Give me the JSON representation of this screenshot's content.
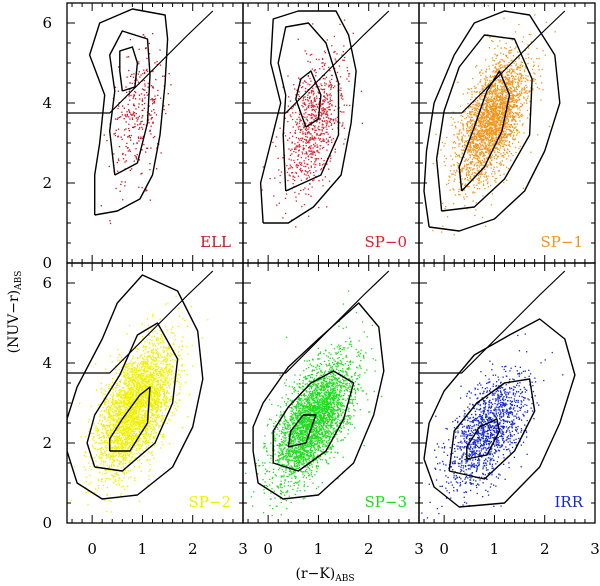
{
  "figure": {
    "ylabel_main": "(NUV−r)",
    "ylabel_sub": "ABS",
    "xlabel_main": "(r−K)",
    "xlabel_sub": "ABS"
  },
  "chart_data": [
    {
      "type": "scatter",
      "name": "ELL",
      "label": "ELL",
      "color": "#c8141e",
      "xlim": [
        -0.5,
        3
      ],
      "ylim": [
        0,
        6.5
      ],
      "xticks": [
        0,
        1,
        2,
        3
      ],
      "yticks": [
        0,
        2,
        4,
        6
      ],
      "n_points": 320,
      "distribution": {
        "cx": 0.9,
        "cy": 3.7,
        "sx": 0.28,
        "sy": 0.8,
        "rho": 0.35
      },
      "contours": [
        [
          [
            0.05,
            1.2
          ],
          [
            0.5,
            1.3
          ],
          [
            0.95,
            1.6
          ],
          [
            1.2,
            2.2
          ],
          [
            1.35,
            3.2
          ],
          [
            1.45,
            4.5
          ],
          [
            1.5,
            5.6
          ],
          [
            1.45,
            6.2
          ],
          [
            0.8,
            6.35
          ],
          [
            0.15,
            6.0
          ],
          [
            -0.05,
            5.2
          ],
          [
            0.25,
            4.2
          ],
          [
            0.15,
            3.0
          ],
          [
            0.05,
            2.2
          ],
          [
            0.05,
            1.2
          ]
        ],
        [
          [
            0.45,
            2.2
          ],
          [
            0.9,
            2.5
          ],
          [
            1.1,
            3.5
          ],
          [
            1.15,
            4.7
          ],
          [
            1.1,
            5.6
          ],
          [
            0.6,
            5.8
          ],
          [
            0.35,
            5.2
          ],
          [
            0.45,
            4.3
          ],
          [
            0.35,
            3.3
          ],
          [
            0.45,
            2.2
          ]
        ],
        [
          [
            0.6,
            4.3
          ],
          [
            0.85,
            4.4
          ],
          [
            0.9,
            5.0
          ],
          [
            0.8,
            5.4
          ],
          [
            0.55,
            5.3
          ],
          [
            0.55,
            4.8
          ],
          [
            0.6,
            4.3
          ]
        ]
      ],
      "boundary": [
        [
          -0.5,
          3.75
        ],
        [
          0.35,
          3.75
        ],
        [
          1.9,
          5.7
        ],
        [
          2.4,
          6.3
        ]
      ]
    },
    {
      "type": "scatter",
      "name": "SP-0",
      "label": "SP−0",
      "color": "#e01e2c",
      "xlim": [
        -0.5,
        3
      ],
      "ylim": [
        0,
        6.5
      ],
      "xticks": [
        0,
        1,
        2,
        3
      ],
      "yticks": [
        0,
        2,
        4,
        6
      ],
      "n_points": 800,
      "distribution": {
        "cx": 0.9,
        "cy": 3.5,
        "sx": 0.3,
        "sy": 0.85,
        "rho": 0.4
      },
      "contours": [
        [
          [
            -0.1,
            1.0
          ],
          [
            0.4,
            1.0
          ],
          [
            0.9,
            1.4
          ],
          [
            1.45,
            2.2
          ],
          [
            1.65,
            3.5
          ],
          [
            1.75,
            4.8
          ],
          [
            1.6,
            5.7
          ],
          [
            1.35,
            6.3
          ],
          [
            0.6,
            6.3
          ],
          [
            0.1,
            6.1
          ],
          [
            0.05,
            5.0
          ],
          [
            0.25,
            4.0
          ],
          [
            0.05,
            3.0
          ],
          [
            -0.15,
            2.0
          ],
          [
            -0.1,
            1.0
          ]
        ],
        [
          [
            0.35,
            1.8
          ],
          [
            1.05,
            2.2
          ],
          [
            1.4,
            3.2
          ],
          [
            1.4,
            4.5
          ],
          [
            1.15,
            5.5
          ],
          [
            0.8,
            6.0
          ],
          [
            0.35,
            5.9
          ],
          [
            0.2,
            5.0
          ],
          [
            0.35,
            4.2
          ],
          [
            0.3,
            3.2
          ],
          [
            0.35,
            1.8
          ]
        ],
        [
          [
            0.75,
            3.4
          ],
          [
            1.0,
            3.6
          ],
          [
            1.05,
            4.2
          ],
          [
            0.85,
            4.8
          ],
          [
            0.65,
            4.6
          ],
          [
            0.55,
            4.1
          ],
          [
            0.75,
            3.4
          ]
        ]
      ],
      "boundary": [
        [
          -0.5,
          3.75
        ],
        [
          0.35,
          3.75
        ],
        [
          1.9,
          5.7
        ],
        [
          2.4,
          6.3
        ]
      ]
    },
    {
      "type": "scatter",
      "name": "SP-1",
      "label": "SP−1",
      "color": "#f0961e",
      "xlim": [
        -0.5,
        3
      ],
      "ylim": [
        0,
        6.5
      ],
      "xticks": [
        0,
        1,
        2,
        3
      ],
      "yticks": [
        0,
        2,
        4,
        6
      ],
      "n_points": 2600,
      "distribution": {
        "cx": 0.95,
        "cy": 3.6,
        "sx": 0.35,
        "sy": 0.8,
        "rho": 0.55
      },
      "contours": [
        [
          [
            -0.3,
            0.9
          ],
          [
            0.3,
            0.8
          ],
          [
            1.0,
            1.1
          ],
          [
            1.6,
            1.8
          ],
          [
            2.0,
            2.8
          ],
          [
            2.3,
            4.0
          ],
          [
            2.2,
            5.2
          ],
          [
            1.7,
            6.2
          ],
          [
            1.2,
            6.3
          ],
          [
            0.6,
            6.0
          ],
          [
            0.2,
            5.2
          ],
          [
            -0.2,
            4.0
          ],
          [
            -0.35,
            2.8
          ],
          [
            -0.4,
            1.8
          ],
          [
            -0.3,
            0.9
          ]
        ],
        [
          [
            -0.05,
            1.3
          ],
          [
            0.6,
            1.4
          ],
          [
            1.2,
            2.1
          ],
          [
            1.7,
            3.2
          ],
          [
            1.75,
            4.6
          ],
          [
            1.4,
            5.6
          ],
          [
            0.8,
            5.7
          ],
          [
            0.3,
            4.9
          ],
          [
            0.0,
            3.8
          ],
          [
            -0.15,
            2.6
          ],
          [
            -0.05,
            1.3
          ]
        ],
        [
          [
            0.35,
            1.8
          ],
          [
            0.8,
            2.4
          ],
          [
            1.15,
            3.3
          ],
          [
            1.3,
            4.2
          ],
          [
            1.1,
            4.8
          ],
          [
            0.85,
            4.3
          ],
          [
            0.6,
            3.4
          ],
          [
            0.3,
            2.4
          ],
          [
            0.35,
            1.8
          ]
        ]
      ],
      "boundary": [
        [
          -0.5,
          3.75
        ],
        [
          0.35,
          3.75
        ],
        [
          1.9,
          5.7
        ],
        [
          2.4,
          6.3
        ]
      ]
    },
    {
      "type": "scatter",
      "name": "SP-2",
      "label": "SP−2",
      "color": "#f0f000",
      "xlim": [
        -0.5,
        3
      ],
      "ylim": [
        0,
        6.5
      ],
      "xticks": [
        0,
        1,
        2,
        3
      ],
      "yticks": [
        0,
        2,
        4,
        6
      ],
      "n_points": 3400,
      "distribution": {
        "cx": 0.85,
        "cy": 2.9,
        "sx": 0.38,
        "sy": 0.8,
        "rho": 0.55
      },
      "contours": [
        [
          [
            -0.5,
            1.8
          ],
          [
            -0.3,
            1.0
          ],
          [
            0.2,
            0.6
          ],
          [
            0.9,
            0.7
          ],
          [
            1.6,
            1.4
          ],
          [
            2.0,
            2.4
          ],
          [
            2.2,
            3.6
          ],
          [
            2.1,
            4.8
          ],
          [
            1.7,
            5.8
          ],
          [
            1.0,
            6.2
          ],
          [
            0.5,
            5.5
          ],
          [
            0.2,
            4.6
          ],
          [
            -0.3,
            3.4
          ],
          [
            -0.5,
            2.6
          ],
          [
            -0.5,
            1.8
          ]
        ],
        [
          [
            0.05,
            1.4
          ],
          [
            0.6,
            1.3
          ],
          [
            1.25,
            2.0
          ],
          [
            1.6,
            3.0
          ],
          [
            1.7,
            4.1
          ],
          [
            1.3,
            5.0
          ],
          [
            0.9,
            4.7
          ],
          [
            0.55,
            3.7
          ],
          [
            0.05,
            2.7
          ],
          [
            -0.1,
            2.0
          ],
          [
            0.05,
            1.4
          ]
        ],
        [
          [
            0.35,
            1.8
          ],
          [
            0.75,
            1.8
          ],
          [
            1.1,
            2.5
          ],
          [
            1.15,
            3.4
          ],
          [
            0.95,
            3.2
          ],
          [
            0.6,
            2.6
          ],
          [
            0.35,
            2.1
          ],
          [
            0.35,
            1.8
          ]
        ]
      ],
      "boundary": [
        [
          -0.5,
          3.75
        ],
        [
          0.35,
          3.75
        ],
        [
          1.9,
          5.7
        ],
        [
          2.4,
          6.3
        ]
      ]
    },
    {
      "type": "scatter",
      "name": "SP-3",
      "label": "SP−3",
      "color": "#1edc1e",
      "xlim": [
        -0.5,
        3
      ],
      "ylim": [
        0,
        6.5
      ],
      "xticks": [
        0,
        1,
        2,
        3
      ],
      "yticks": [
        0,
        2,
        4,
        6
      ],
      "n_points": 3200,
      "distribution": {
        "cx": 0.9,
        "cy": 2.6,
        "sx": 0.4,
        "sy": 0.75,
        "rho": 0.6
      },
      "contours": [
        [
          [
            -0.3,
            1.8
          ],
          [
            -0.2,
            1.0
          ],
          [
            0.3,
            0.6
          ],
          [
            1.0,
            0.7
          ],
          [
            1.7,
            1.5
          ],
          [
            2.1,
            2.7
          ],
          [
            2.3,
            3.8
          ],
          [
            2.2,
            4.9
          ],
          [
            1.8,
            5.5
          ],
          [
            1.0,
            4.6
          ],
          [
            0.4,
            3.9
          ],
          [
            -0.1,
            3.0
          ],
          [
            -0.3,
            2.4
          ],
          [
            -0.3,
            1.8
          ]
        ],
        [
          [
            0.1,
            1.5
          ],
          [
            0.6,
            1.3
          ],
          [
            1.15,
            1.8
          ],
          [
            1.5,
            2.6
          ],
          [
            1.7,
            3.5
          ],
          [
            1.3,
            3.8
          ],
          [
            0.85,
            3.5
          ],
          [
            0.4,
            2.9
          ],
          [
            0.1,
            2.3
          ],
          [
            0.1,
            1.5
          ]
        ],
        [
          [
            0.4,
            1.9
          ],
          [
            0.75,
            2.0
          ],
          [
            0.95,
            2.7
          ],
          [
            0.7,
            2.7
          ],
          [
            0.45,
            2.3
          ],
          [
            0.4,
            1.9
          ]
        ]
      ],
      "boundary": [
        [
          -0.5,
          3.75
        ],
        [
          0.35,
          3.75
        ],
        [
          1.9,
          5.7
        ],
        [
          2.4,
          6.3
        ]
      ]
    },
    {
      "type": "scatter",
      "name": "IRR",
      "label": "IRR",
      "color": "#1428d2",
      "xlim": [
        -0.5,
        3
      ],
      "ylim": [
        0,
        6.5
      ],
      "xticks": [
        0,
        1,
        2,
        3
      ],
      "yticks": [
        0,
        2,
        4,
        6
      ],
      "n_points": 1400,
      "distribution": {
        "cx": 0.85,
        "cy": 2.3,
        "sx": 0.4,
        "sy": 0.75,
        "rho": 0.6
      },
      "contours": [
        [
          [
            -0.4,
            1.6
          ],
          [
            -0.2,
            0.9
          ],
          [
            0.3,
            0.4
          ],
          [
            1.2,
            0.5
          ],
          [
            1.9,
            1.4
          ],
          [
            2.3,
            2.5
          ],
          [
            2.6,
            3.7
          ],
          [
            2.4,
            4.6
          ],
          [
            1.9,
            5.1
          ],
          [
            1.3,
            4.7
          ],
          [
            0.6,
            4.2
          ],
          [
            0.0,
            3.3
          ],
          [
            -0.3,
            2.5
          ],
          [
            -0.4,
            1.6
          ]
        ],
        [
          [
            0.1,
            1.3
          ],
          [
            0.8,
            1.1
          ],
          [
            1.4,
            1.8
          ],
          [
            1.8,
            2.8
          ],
          [
            1.7,
            3.6
          ],
          [
            1.2,
            3.5
          ],
          [
            0.65,
            3.0
          ],
          [
            0.2,
            2.3
          ],
          [
            0.1,
            1.3
          ]
        ],
        [
          [
            0.45,
            1.6
          ],
          [
            0.85,
            1.7
          ],
          [
            1.1,
            2.3
          ],
          [
            1.05,
            2.6
          ],
          [
            0.7,
            2.4
          ],
          [
            0.45,
            1.9
          ],
          [
            0.45,
            1.6
          ]
        ]
      ],
      "boundary": [
        [
          -0.5,
          3.75
        ],
        [
          0.35,
          3.75
        ],
        [
          1.9,
          5.7
        ],
        [
          2.4,
          6.3
        ]
      ]
    }
  ]
}
